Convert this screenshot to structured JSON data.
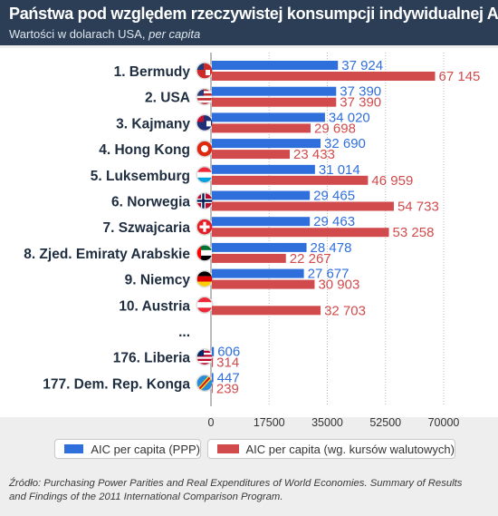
{
  "header": {
    "title": "Państwa pod względem rzeczywistej konsumpcji indywidualnej AIC",
    "subtitle_main": "Wartości w dolarach USA, ",
    "subtitle_italic": "per capita"
  },
  "colors": {
    "ppp": "#2f6fdc",
    "fx": "#d24b4c",
    "header_bg": "#2c3e55"
  },
  "chart_data": {
    "type": "bar",
    "orientation": "horizontal",
    "categories": [
      "1. Bermudy",
      "2. USA",
      "3. Kajmany",
      "4. Hong Kong",
      "5. Luksemburg",
      "6. Norwegia",
      "7. Szwajcaria",
      "8. Zjed. Emiraty Arabskie",
      "9. Niemcy",
      "10. Austria",
      "...",
      "176. Liberia",
      "177. Dem. Rep. Konga"
    ],
    "flags": [
      "bermuda-flag",
      "usa-flag",
      "cayman-flag",
      "hong-kong-flag",
      "luxembourg-flag",
      "norway-flag",
      "switzerland-flag",
      "uae-flag",
      "germany-flag",
      "austria-flag",
      null,
      "liberia-flag",
      "dr-congo-flag"
    ],
    "series": [
      {
        "name": "AIC per capita (PPP)",
        "color": "#2f6fdc",
        "values": [
          37924,
          37390,
          34020,
          32690,
          31014,
          29465,
          29463,
          28478,
          27677,
          null,
          null,
          606,
          447
        ],
        "labels": [
          "37 924",
          "37 390",
          "34 020",
          "32 690",
          "31 014",
          "29 465",
          "29 463",
          "28 478",
          "27 677",
          "",
          "",
          "606",
          "447"
        ]
      },
      {
        "name": "AIC per capita (wg. kursów walutowych)",
        "color": "#d24b4c",
        "values": [
          67145,
          37390,
          29698,
          23433,
          46959,
          54733,
          53258,
          22267,
          30903,
          32703,
          null,
          314,
          239
        ],
        "labels": [
          "67 145",
          "37 390",
          "29 698",
          "23 433",
          "46 959",
          "54 733",
          "53 258",
          "22 267",
          "30 903",
          "32 703",
          "",
          "314",
          "239"
        ]
      }
    ],
    "xlim": [
      0,
      70000
    ],
    "xticks": [
      0,
      17500,
      35000,
      52500,
      70000
    ],
    "xtick_labels": [
      "0",
      "17500",
      "35000",
      "52500",
      "70000"
    ],
    "xlabel": "",
    "ylabel": "",
    "legend_position": "bottom",
    "grid": "vertical dotted"
  },
  "legend": {
    "ppp_label": "AIC per capita (PPP)",
    "fx_label": "AIC per capita (wg. kursów walutowych)"
  },
  "source": {
    "line1": "Źródło: Purchasing Power Parities and Real Expenditures of World Economies. Summary of Results",
    "line2": "and Findings of the 2011 International Comparison Program."
  }
}
